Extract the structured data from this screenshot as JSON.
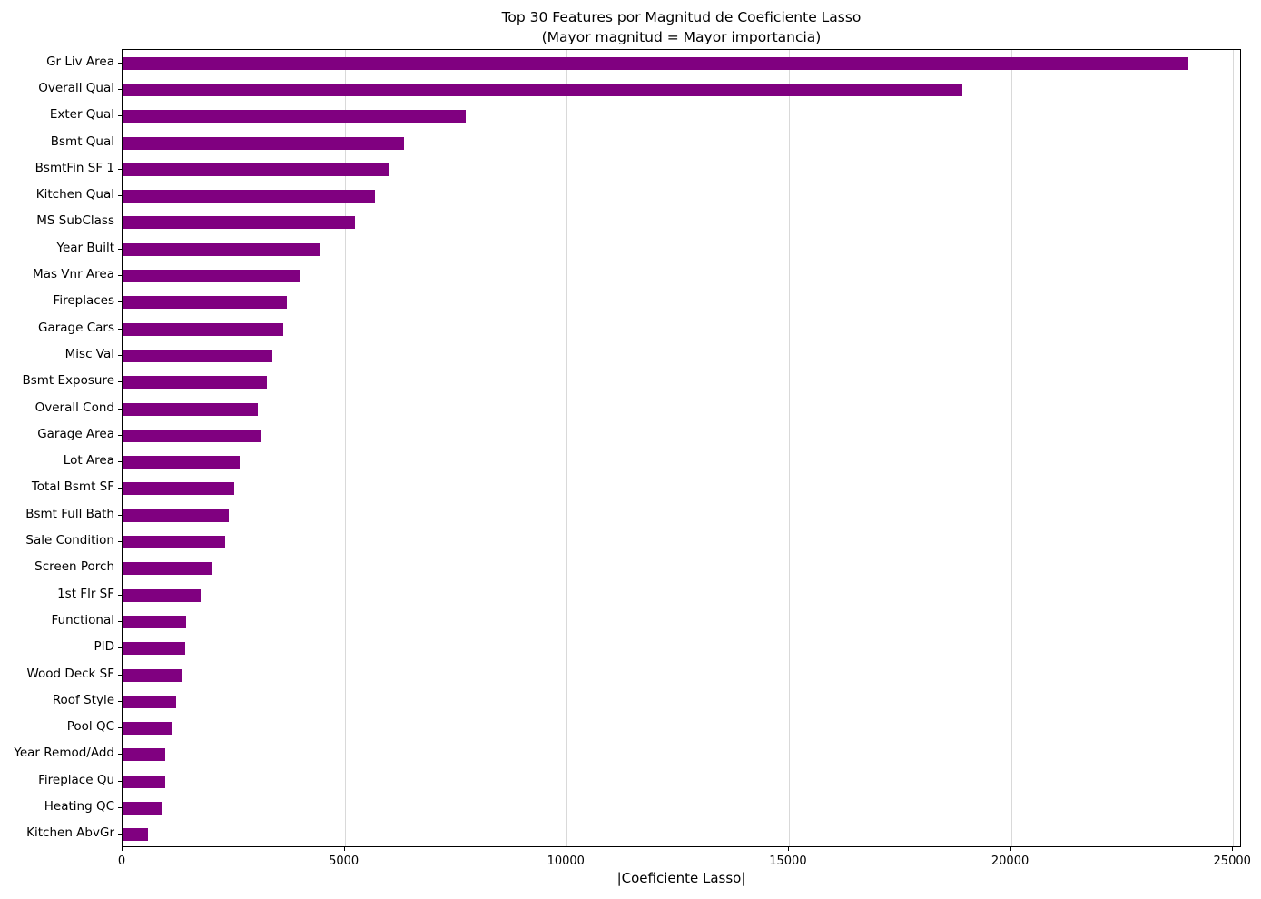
{
  "chart_data": {
    "type": "bar",
    "orientation": "horizontal",
    "title": "Top 30 Features por Magnitud de Coeficiente Lasso",
    "subtitle": "(Mayor magnitud = Mayor importancia)",
    "xlabel": "|Coeficiente Lasso|",
    "categories": [
      "Gr Liv Area",
      "Overall Qual",
      "Exter Qual",
      "Bsmt Qual",
      "BsmtFin SF 1",
      "Kitchen Qual",
      "MS SubClass",
      "Year Built",
      "Mas Vnr Area",
      "Fireplaces",
      "Garage Cars",
      "Misc Val",
      "Bsmt Exposure",
      "Overall Cond",
      "Garage Area",
      "Lot Area",
      "Total Bsmt SF",
      "Bsmt Full Bath",
      "Sale Condition",
      "Screen Porch",
      "1st Flr SF",
      "Functional",
      "PID",
      "Wood Deck SF",
      "Roof Style",
      "Pool QC",
      "Year Remod/Add",
      "Fireplace Qu",
      "Heating QC",
      "Kitchen AbvGr"
    ],
    "values": [
      24000,
      18900,
      7720,
      6330,
      6000,
      5690,
      5240,
      4430,
      4000,
      3700,
      3620,
      3370,
      3240,
      3050,
      3100,
      2630,
      2520,
      2400,
      2310,
      2010,
      1750,
      1440,
      1420,
      1340,
      1210,
      1130,
      970,
      960,
      870,
      580
    ],
    "xlim": [
      0,
      25200
    ],
    "xticks": [
      0,
      5000,
      10000,
      15000,
      20000,
      25000
    ],
    "grid": "vertical gridlines at x ticks",
    "legend": "none",
    "bar_color": "#800080",
    "gridline_color": "#d9d9d9",
    "background_color": "#ffffff",
    "text_color": "#000000"
  }
}
